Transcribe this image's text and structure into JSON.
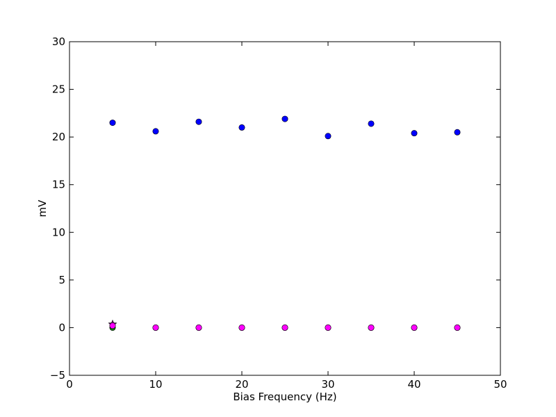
{
  "chart_data": {
    "type": "scatter",
    "xlabel": "Bias Frequency (Hz)",
    "ylabel": "mV",
    "xlim": [
      0,
      50
    ],
    "ylim": [
      -5,
      30
    ],
    "xticks": [
      "0",
      "10",
      "20",
      "30",
      "40",
      "50"
    ],
    "yticks": [
      "−5",
      "0",
      "5",
      "10",
      "15",
      "20",
      "25",
      "30"
    ],
    "grid": false,
    "legend": "none",
    "series": [
      {
        "color": "#0000ff",
        "marker": "circle",
        "x": [
          5,
          10,
          15,
          20,
          25,
          30,
          35,
          40,
          45
        ],
        "y": [
          21.5,
          20.6,
          21.6,
          21.0,
          21.9,
          20.1,
          21.4,
          20.4,
          20.5
        ]
      },
      {
        "color": "#008000",
        "marker": "circle",
        "x": [
          5,
          10,
          15,
          20,
          25,
          30,
          35,
          40,
          45
        ],
        "y": [
          0.0,
          0.0,
          0.0,
          0.0,
          0.0,
          0.0,
          0.0,
          0.0,
          0.0
        ]
      },
      {
        "color": "#800080",
        "marker": "star",
        "x": [
          5
        ],
        "y": [
          0.35
        ]
      },
      {
        "color": "#ff00ff",
        "marker": "circle",
        "x": [
          5,
          10,
          15,
          20,
          25,
          30,
          35,
          40,
          45
        ],
        "y": [
          0.2,
          0.0,
          0.0,
          0.0,
          0.0,
          0.0,
          0.0,
          0.0,
          0.0
        ]
      }
    ]
  }
}
